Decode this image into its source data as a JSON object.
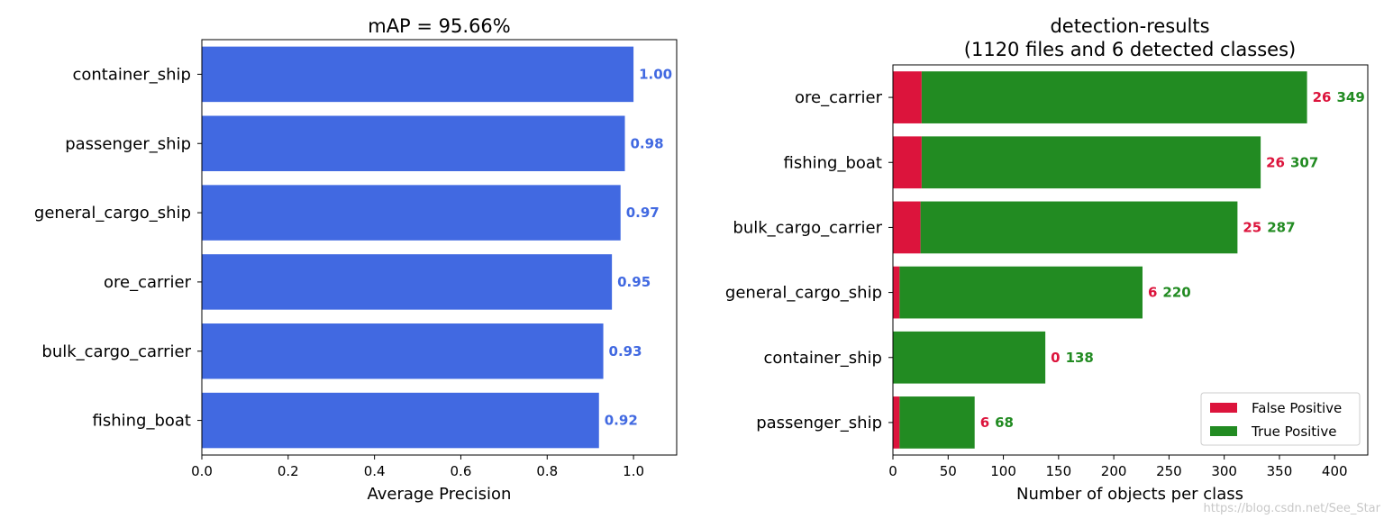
{
  "chart_data": [
    {
      "type": "bar",
      "orientation": "horizontal",
      "title": "mAP = 95.66%",
      "xlabel": "Average Precision",
      "ylabel": "",
      "xlim": [
        0,
        1.1
      ],
      "xticks": [
        "0.0",
        "0.2",
        "0.4",
        "0.6",
        "0.8",
        "1.0"
      ],
      "categories": [
        "container_ship",
        "passenger_ship",
        "general_cargo_ship",
        "ore_carrier",
        "bulk_cargo_carrier",
        "fishing_boat"
      ],
      "values": [
        1.0,
        0.98,
        0.97,
        0.95,
        0.93,
        0.92
      ],
      "value_labels": [
        "1.00",
        "0.98",
        "0.97",
        "0.95",
        "0.93",
        "0.92"
      ],
      "color": "#4169E1",
      "grid": false
    },
    {
      "type": "bar",
      "orientation": "horizontal",
      "stacked": true,
      "title": "detection-results",
      "subtitle": "(1120 files and 6 detected classes)",
      "xlabel": "Number of objects per class",
      "ylabel": "",
      "xlim": [
        0,
        430
      ],
      "xticks": [
        "0",
        "50",
        "100",
        "150",
        "200",
        "250",
        "300",
        "350",
        "400"
      ],
      "categories": [
        "ore_carrier",
        "fishing_boat",
        "bulk_cargo_carrier",
        "general_cargo_ship",
        "container_ship",
        "passenger_ship"
      ],
      "series": [
        {
          "name": "False Positive",
          "color": "#DC143C",
          "values": [
            26,
            26,
            25,
            6,
            0,
            6
          ]
        },
        {
          "name": "True Positive",
          "color": "#228B22",
          "values": [
            349,
            307,
            287,
            220,
            138,
            68
          ]
        }
      ],
      "legend_position": "bottom-right",
      "grid": false
    }
  ],
  "watermark": "https://blog.csdn.net/See_Star"
}
